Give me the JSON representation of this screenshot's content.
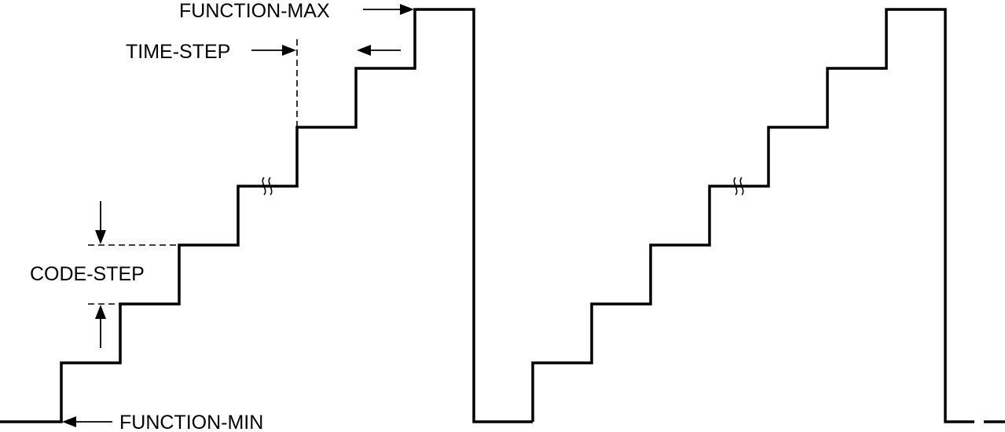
{
  "diagram": {
    "labels": {
      "function_max": "FUNCTION-MAX",
      "time_step": "TIME-STEP",
      "code_step": "CODE-STEP",
      "function_min": "FUNCTION-MIN"
    },
    "waveform": {
      "shape": "sawtooth staircase",
      "cycles": 2,
      "continues": true
    },
    "stroke_color": "#000000",
    "background_color": "#ffffff"
  }
}
